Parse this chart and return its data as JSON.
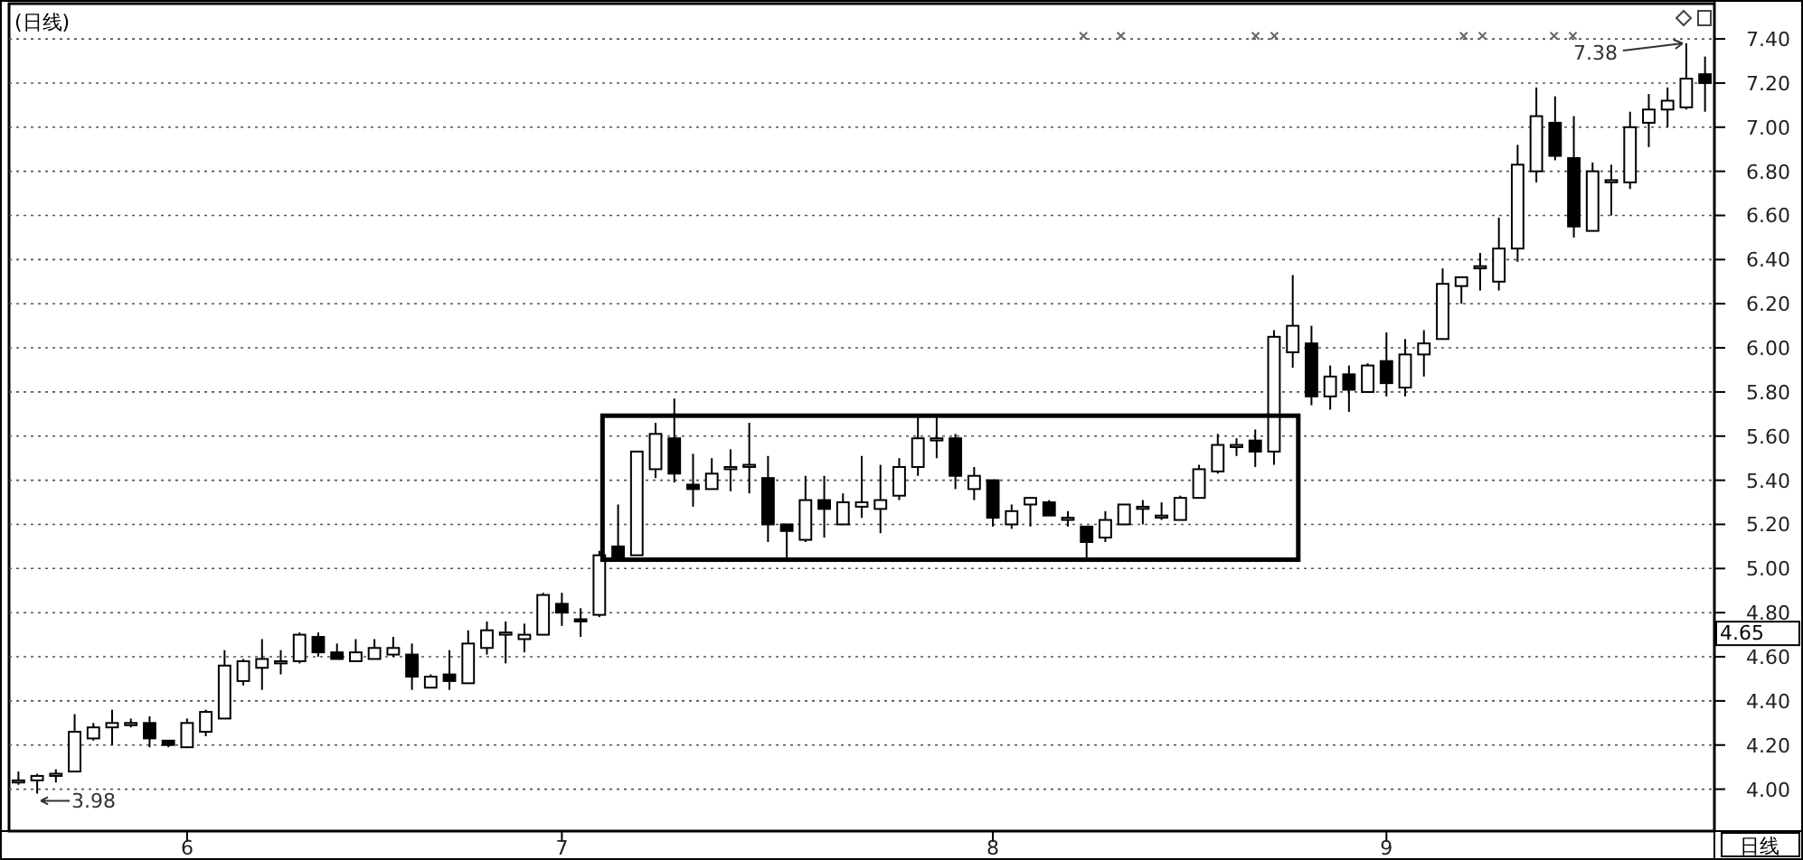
{
  "chart_data": {
    "type": "candlestick",
    "title": "(日线)",
    "categories": [
      null,
      null,
      null,
      null,
      null,
      null,
      null,
      null,
      null,
      "6",
      null,
      null,
      null,
      null,
      null,
      null,
      null,
      null,
      null,
      null,
      null,
      null,
      null,
      null,
      null,
      null,
      null,
      null,
      null,
      "7",
      null,
      null,
      null,
      null,
      null,
      null,
      null,
      null,
      null,
      null,
      null,
      null,
      null,
      null,
      null,
      null,
      null,
      null,
      null,
      null,
      null,
      null,
      "8",
      null,
      null,
      null,
      null,
      null,
      null,
      null,
      null,
      null,
      null,
      null,
      null,
      null,
      null,
      null,
      null,
      null,
      null,
      null,
      null,
      "9",
      null,
      null,
      null,
      null,
      null,
      null,
      null,
      null,
      null,
      null,
      null,
      null,
      null,
      null,
      null,
      null,
      null
    ],
    "ohlc": [
      [
        4.04,
        4.08,
        4.02,
        4.04
      ],
      [
        4.04,
        4.07,
        3.98,
        4.06
      ],
      [
        4.06,
        4.09,
        4.03,
        4.07
      ],
      [
        4.08,
        4.34,
        4.08,
        4.26
      ],
      [
        4.23,
        4.3,
        4.22,
        4.28
      ],
      [
        4.28,
        4.36,
        4.2,
        4.3
      ],
      [
        4.29,
        4.32,
        4.28,
        4.3
      ],
      [
        4.3,
        4.33,
        4.19,
        4.23
      ],
      [
        4.22,
        4.22,
        4.19,
        4.2
      ],
      [
        4.19,
        4.32,
        4.19,
        4.3
      ],
      [
        4.26,
        4.36,
        4.24,
        4.35
      ],
      [
        4.32,
        4.63,
        4.32,
        4.56
      ],
      [
        4.49,
        4.59,
        4.47,
        4.58
      ],
      [
        4.55,
        4.68,
        4.45,
        4.59
      ],
      [
        4.57,
        4.63,
        4.52,
        4.58
      ],
      [
        4.58,
        4.71,
        4.57,
        4.7
      ],
      [
        4.69,
        4.71,
        4.6,
        4.62
      ],
      [
        4.62,
        4.66,
        4.59,
        4.59
      ],
      [
        4.58,
        4.68,
        4.58,
        4.62
      ],
      [
        4.59,
        4.68,
        4.59,
        4.64
      ],
      [
        4.61,
        4.69,
        4.6,
        4.64
      ],
      [
        4.61,
        4.66,
        4.45,
        4.51
      ],
      [
        4.46,
        4.52,
        4.46,
        4.51
      ],
      [
        4.52,
        4.63,
        4.45,
        4.49
      ],
      [
        4.48,
        4.72,
        4.48,
        4.66
      ],
      [
        4.64,
        4.76,
        4.61,
        4.72
      ],
      [
        4.7,
        4.76,
        4.57,
        4.71
      ],
      [
        4.68,
        4.75,
        4.62,
        4.7
      ],
      [
        4.7,
        4.89,
        4.7,
        4.88
      ],
      [
        4.84,
        4.89,
        4.74,
        4.8
      ],
      [
        4.77,
        4.82,
        4.69,
        4.76
      ],
      [
        4.79,
        5.08,
        4.78,
        5.06
      ],
      [
        5.1,
        5.29,
        5.03,
        5.05
      ],
      [
        5.06,
        5.53,
        5.06,
        5.53
      ],
      [
        5.45,
        5.66,
        5.41,
        5.61
      ],
      [
        5.59,
        5.77,
        5.39,
        5.43
      ],
      [
        5.38,
        5.52,
        5.28,
        5.36
      ],
      [
        5.36,
        5.5,
        5.36,
        5.43
      ],
      [
        5.45,
        5.54,
        5.35,
        5.46
      ],
      [
        5.47,
        5.66,
        5.34,
        5.47
      ],
      [
        5.41,
        5.51,
        5.12,
        5.2
      ],
      [
        5.2,
        5.2,
        5.05,
        5.17
      ],
      [
        5.13,
        5.42,
        5.12,
        5.31
      ],
      [
        5.31,
        5.42,
        5.14,
        5.27
      ],
      [
        5.2,
        5.34,
        5.2,
        5.3
      ],
      [
        5.28,
        5.51,
        5.23,
        5.3
      ],
      [
        5.27,
        5.47,
        5.16,
        5.31
      ],
      [
        5.33,
        5.5,
        5.31,
        5.46
      ],
      [
        5.46,
        5.69,
        5.42,
        5.59
      ],
      [
        5.59,
        5.69,
        5.5,
        5.59
      ],
      [
        5.59,
        5.61,
        5.36,
        5.42
      ],
      [
        5.36,
        5.46,
        5.31,
        5.42
      ],
      [
        5.4,
        5.4,
        5.19,
        5.23
      ],
      [
        5.2,
        5.29,
        5.18,
        5.26
      ],
      [
        5.29,
        5.32,
        5.19,
        5.32
      ],
      [
        5.3,
        5.31,
        5.24,
        5.24
      ],
      [
        5.23,
        5.26,
        5.19,
        5.23
      ],
      [
        5.19,
        5.19,
        5.05,
        5.12
      ],
      [
        5.14,
        5.26,
        5.12,
        5.22
      ],
      [
        5.2,
        5.29,
        5.2,
        5.29
      ],
      [
        5.28,
        5.31,
        5.2,
        5.28
      ],
      [
        5.24,
        5.3,
        5.22,
        5.24
      ],
      [
        5.22,
        5.33,
        5.22,
        5.32
      ],
      [
        5.32,
        5.47,
        5.32,
        5.45
      ],
      [
        5.44,
        5.61,
        5.43,
        5.56
      ],
      [
        5.56,
        5.59,
        5.51,
        5.56
      ],
      [
        5.58,
        5.63,
        5.46,
        5.53
      ],
      [
        5.53,
        6.08,
        5.47,
        6.05
      ],
      [
        5.98,
        6.33,
        5.91,
        6.1
      ],
      [
        6.02,
        6.1,
        5.74,
        5.78
      ],
      [
        5.78,
        5.92,
        5.72,
        5.87
      ],
      [
        5.88,
        5.92,
        5.71,
        5.81
      ],
      [
        5.8,
        5.93,
        5.8,
        5.92
      ],
      [
        5.94,
        6.07,
        5.78,
        5.84
      ],
      [
        5.82,
        6.04,
        5.78,
        5.97
      ],
      [
        5.97,
        6.08,
        5.87,
        6.02
      ],
      [
        6.04,
        6.36,
        6.04,
        6.29
      ],
      [
        6.28,
        6.32,
        6.2,
        6.32
      ],
      [
        6.37,
        6.43,
        6.26,
        6.37
      ],
      [
        6.3,
        6.59,
        6.26,
        6.45
      ],
      [
        6.45,
        6.92,
        6.39,
        6.83
      ],
      [
        6.8,
        7.18,
        6.75,
        7.05
      ],
      [
        7.02,
        7.14,
        6.85,
        6.87
      ],
      [
        6.86,
        7.05,
        6.5,
        6.55
      ],
      [
        6.53,
        6.84,
        6.53,
        6.8
      ],
      [
        6.76,
        6.83,
        6.6,
        6.76
      ],
      [
        6.75,
        7.07,
        6.72,
        7.0
      ],
      [
        7.02,
        7.15,
        6.91,
        7.08
      ],
      [
        7.08,
        7.18,
        7.0,
        7.12
      ],
      [
        7.09,
        7.38,
        7.08,
        7.22
      ],
      [
        7.24,
        7.32,
        7.07,
        7.2
      ]
    ],
    "ylim": [
      3.81,
      7.56
    ],
    "yticks": [
      {
        "value": 4.0,
        "label": "4.00"
      },
      {
        "value": 4.2,
        "label": "4.20"
      },
      {
        "value": 4.4,
        "label": "4.40"
      },
      {
        "value": 4.6,
        "label": "4.60"
      },
      {
        "value": 4.8,
        "label": "4.80"
      },
      {
        "value": 5.0,
        "label": "5.00"
      },
      {
        "value": 5.2,
        "label": "5.20"
      },
      {
        "value": 5.4,
        "label": "5.40"
      },
      {
        "value": 5.6,
        "label": "5.60"
      },
      {
        "value": 5.8,
        "label": "5.80"
      },
      {
        "value": 6.0,
        "label": "6.00"
      },
      {
        "value": 6.2,
        "label": "6.20"
      },
      {
        "value": 6.4,
        "label": "6.40"
      },
      {
        "value": 6.6,
        "label": "6.60"
      },
      {
        "value": 6.8,
        "label": "6.80"
      },
      {
        "value": 7.0,
        "label": "7.00"
      },
      {
        "value": 7.2,
        "label": "7.20"
      },
      {
        "value": 7.4,
        "label": "7.40"
      }
    ],
    "grid": "y",
    "annotations": [
      "3.98",
      "7.38",
      "4.65",
      "日线"
    ]
  }
}
